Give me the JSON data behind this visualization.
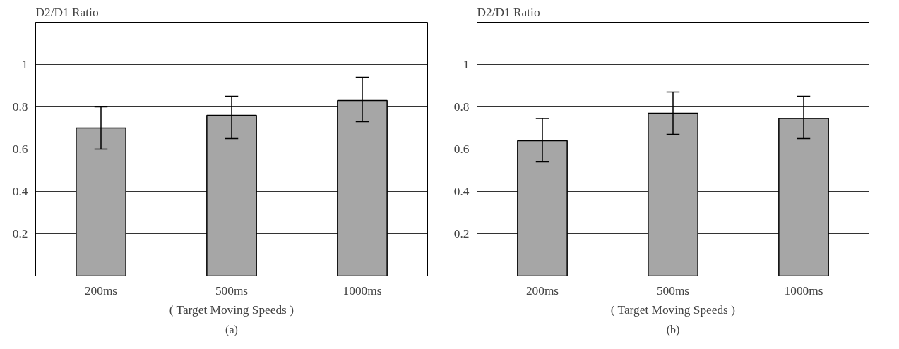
{
  "chart_data": [
    {
      "type": "bar",
      "ylabel": "D2/D1 Ratio",
      "xlabel": "( Target Moving Speeds )",
      "categories": [
        "200ms",
        "500ms",
        "1000ms"
      ],
      "series": [
        {
          "color": "#a6a6a6",
          "values": [
            0.7,
            0.76,
            0.83
          ],
          "errors": [
            [
              0.6,
              0.8
            ],
            [
              0.65,
              0.85
            ],
            [
              0.73,
              0.94
            ]
          ]
        }
      ],
      "ylim": [
        0,
        1.2
      ],
      "yticks": [
        0.2,
        0.4,
        0.6,
        0.8,
        {
          "value": 1,
          "label": "1"
        }
      ],
      "grid": "y",
      "annotations": [
        "(a)"
      ]
    },
    {
      "type": "bar",
      "ylabel": "D2/D1 Ratio",
      "xlabel": "( Target Moving Speeds )",
      "categories": [
        "200ms",
        "500ms",
        "1000ms"
      ],
      "series": [
        {
          "color": "#a6a6a6",
          "values": [
            0.64,
            0.77,
            0.745
          ],
          "errors": [
            [
              0.54,
              0.745
            ],
            [
              0.67,
              0.87
            ],
            [
              0.65,
              0.85
            ]
          ]
        }
      ],
      "ylim": [
        0,
        1.2
      ],
      "yticks": [
        0.2,
        0.4,
        0.6,
        0.8,
        {
          "value": 1,
          "label": "1"
        }
      ],
      "grid": "y",
      "annotations": [
        "(b)"
      ]
    }
  ]
}
